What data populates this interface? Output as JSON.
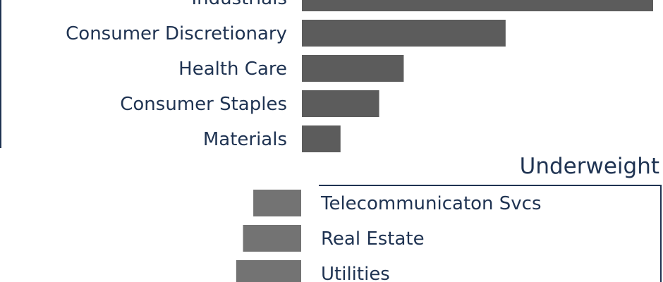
{
  "colors": {
    "text": "#1f3352",
    "bar_overweight": "#5c5c5c",
    "bar_underweight": "#737373",
    "frame": "#1f3352",
    "background": "#ffffff"
  },
  "chart_data": [
    {
      "type": "bar",
      "orientation": "horizontal",
      "categories": [
        "Industrials",
        "Consumer Discretionary",
        "Health Care",
        "Consumer Staples",
        "Materials"
      ],
      "values": [
        100,
        58,
        29,
        22,
        11
      ],
      "xlabel": "",
      "ylabel": "",
      "grid": false
    },
    {
      "type": "bar",
      "orientation": "horizontal",
      "direction": "leftward",
      "title": "Underweight",
      "categories": [
        "Telecommunicaton Svcs",
        "Real Estate",
        "Utilities"
      ],
      "values": [
        14,
        17,
        19
      ],
      "xlabel": "",
      "ylabel": "",
      "grid": false
    }
  ]
}
